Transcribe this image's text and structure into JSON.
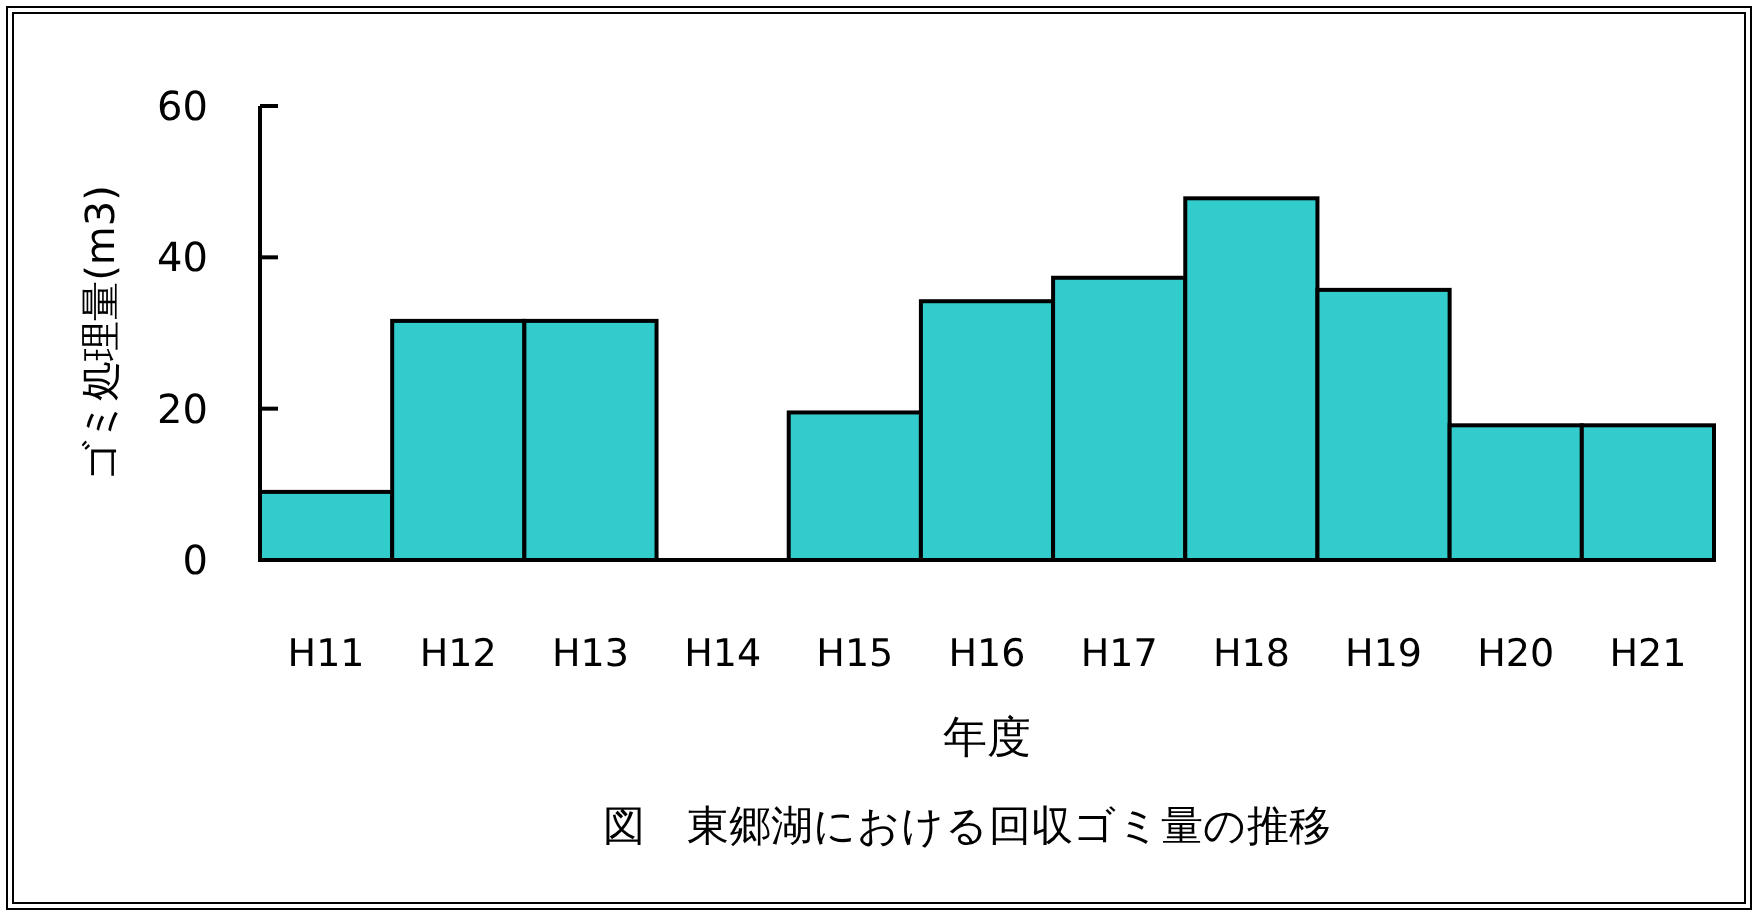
{
  "chart_data": {
    "type": "bar",
    "categories": [
      "H11",
      "H12",
      "H13",
      "H14",
      "H15",
      "H16",
      "H17",
      "H18",
      "H19",
      "H20",
      "H21"
    ],
    "values": [
      9,
      31.6,
      31.6,
      0,
      19.5,
      34.2,
      37.3,
      47.8,
      35.7,
      17.8,
      17.8
    ],
    "color": "#33cccc",
    "ylim": [
      0,
      60
    ],
    "yticks": [
      0,
      20,
      40,
      60
    ],
    "xlabel": "年度",
    "ylabel": "ゴミ処理量(m3)",
    "annotations": [
      "図　東郷湖における回収ゴミ量の推移"
    ]
  }
}
